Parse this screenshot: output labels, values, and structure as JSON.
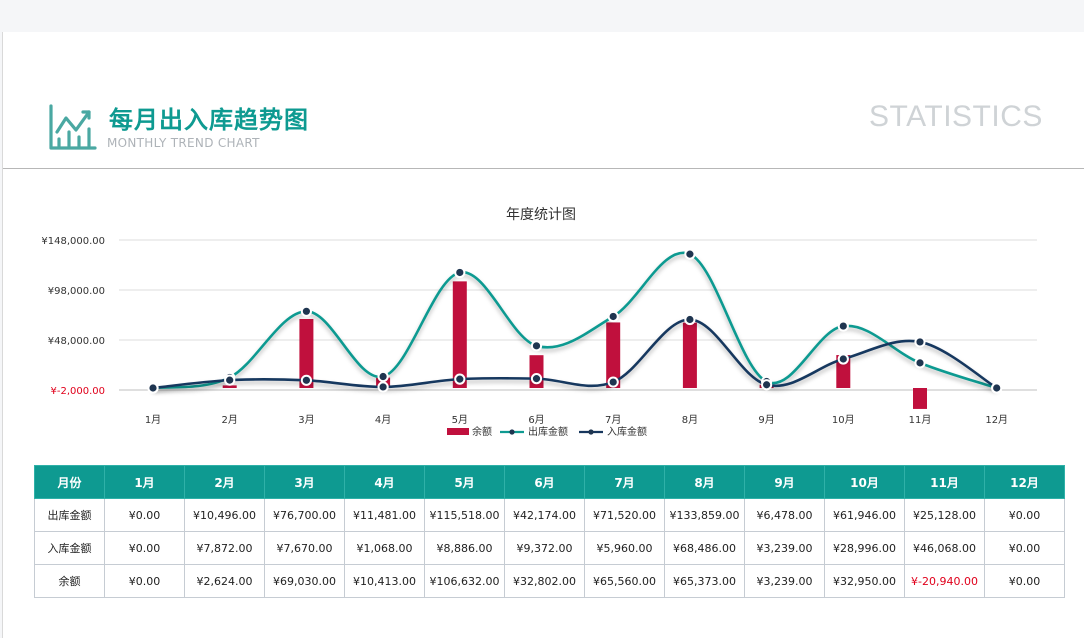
{
  "header": {
    "title": "每月出入库趋势图",
    "subtitle": "MONTHLY TREND CHART",
    "stat_label": "STATISTICS",
    "logo_icon": "line-chart-icon"
  },
  "colors": {
    "teal": "#0e9a91",
    "navy": "#17375e",
    "bar": "#c0103d",
    "negative": "#e0001b"
  },
  "chart_data": {
    "type": "bar+line",
    "title": "年度统计图",
    "categories": [
      "1月",
      "2月",
      "3月",
      "4月",
      "5月",
      "6月",
      "7月",
      "8月",
      "9月",
      "10月",
      "11月",
      "12月"
    ],
    "ylim": [
      -2000,
      148000
    ],
    "yticks": [
      -2000,
      48000,
      98000,
      148000
    ],
    "ytick_labels": [
      "¥-2,000.00",
      "¥48,000.00",
      "¥98,000.00",
      "¥148,000.00"
    ],
    "grid": true,
    "legend_position": "bottom",
    "series": [
      {
        "name": "余额",
        "type": "bar",
        "values": [
          0,
          2624,
          69030,
          10413,
          106632,
          32802,
          65560,
          65373,
          3239,
          32950,
          -20940,
          0
        ]
      },
      {
        "name": "出库金额",
        "type": "line",
        "values": [
          0,
          10496,
          76700,
          11481,
          115518,
          42174,
          71520,
          133859,
          6478,
          61946,
          25128,
          0
        ]
      },
      {
        "name": "入库金额",
        "type": "line",
        "values": [
          0,
          7872,
          7670,
          1068,
          8886,
          9372,
          5960,
          68486,
          3239,
          28996,
          46068,
          0
        ]
      }
    ]
  },
  "table": {
    "header_label": "月份",
    "months": [
      "1月",
      "2月",
      "3月",
      "4月",
      "5月",
      "6月",
      "7月",
      "8月",
      "9月",
      "10月",
      "11月",
      "12月"
    ],
    "rows": [
      {
        "label": "出库金额",
        "cells": [
          "¥0.00",
          "¥10,496.00",
          "¥76,700.00",
          "¥11,481.00",
          "¥115,518.00",
          "¥42,174.00",
          "¥71,520.00",
          "¥133,859.00",
          "¥6,478.00",
          "¥61,946.00",
          "¥25,128.00",
          "¥0.00"
        ]
      },
      {
        "label": "入库金额",
        "cells": [
          "¥0.00",
          "¥7,872.00",
          "¥7,670.00",
          "¥1,068.00",
          "¥8,886.00",
          "¥9,372.00",
          "¥5,960.00",
          "¥68,486.00",
          "¥3,239.00",
          "¥28,996.00",
          "¥46,068.00",
          "¥0.00"
        ]
      },
      {
        "label": "余额",
        "cells": [
          "¥0.00",
          "¥2,624.00",
          "¥69,030.00",
          "¥10,413.00",
          "¥106,632.00",
          "¥32,802.00",
          "¥65,560.00",
          "¥65,373.00",
          "¥3,239.00",
          "¥32,950.00",
          "¥-20,940.00",
          "¥0.00"
        ]
      }
    ]
  }
}
